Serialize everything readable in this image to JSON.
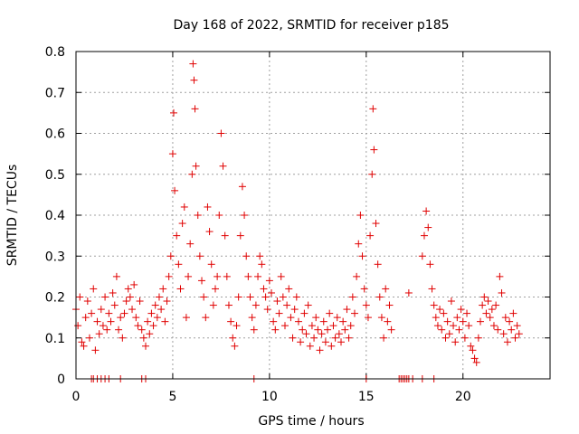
{
  "chart_data": {
    "type": "scatter",
    "title": "Day 168 of 2022, SRMTID for receiver p185",
    "xlabel": "GPS time / hours",
    "ylabel": "SRMTID / TECUs",
    "xlim": [
      0,
      24.5
    ],
    "ylim": [
      0,
      0.8
    ],
    "x_ticks": [
      0,
      5,
      10,
      15,
      20
    ],
    "x_tick_labels": [
      "0",
      "5",
      "10",
      "15",
      "20"
    ],
    "y_ticks": [
      0,
      0.1,
      0.2,
      0.3,
      0.4,
      0.5,
      0.6,
      0.7,
      0.8
    ],
    "y_tick_labels": [
      "0",
      "0.1",
      "0.2",
      "0.3",
      "0.4",
      "0.5",
      "0.6",
      "0.7",
      "0.8"
    ],
    "grid": true,
    "marker": "+",
    "color": "#e00000",
    "series": [
      {
        "name": "SRMTID",
        "points": [
          [
            0.0,
            0.17
          ],
          [
            0.1,
            0.13
          ],
          [
            0.2,
            0.2
          ],
          [
            0.3,
            0.09
          ],
          [
            0.4,
            0.08
          ],
          [
            0.5,
            0.15
          ],
          [
            0.6,
            0.19
          ],
          [
            0.7,
            0.1
          ],
          [
            0.8,
            0.16
          ],
          [
            0.9,
            0.22
          ],
          [
            1.0,
            0.07
          ],
          [
            1.1,
            0.14
          ],
          [
            1.2,
            0.11
          ],
          [
            1.3,
            0.17
          ],
          [
            1.4,
            0.13
          ],
          [
            1.5,
            0.2
          ],
          [
            1.6,
            0.12
          ],
          [
            1.7,
            0.16
          ],
          [
            1.8,
            0.14
          ],
          [
            1.9,
            0.21
          ],
          [
            2.0,
            0.18
          ],
          [
            2.1,
            0.25
          ],
          [
            2.2,
            0.12
          ],
          [
            2.3,
            0.15
          ],
          [
            2.4,
            0.1
          ],
          [
            2.5,
            0.16
          ],
          [
            2.6,
            0.19
          ],
          [
            2.7,
            0.22
          ],
          [
            2.8,
            0.2
          ],
          [
            2.9,
            0.17
          ],
          [
            3.0,
            0.23
          ],
          [
            3.1,
            0.15
          ],
          [
            3.2,
            0.13
          ],
          [
            3.3,
            0.19
          ],
          [
            3.4,
            0.12
          ],
          [
            3.5,
            0.1
          ],
          [
            3.6,
            0.08
          ],
          [
            3.7,
            0.14
          ],
          [
            3.8,
            0.11
          ],
          [
            3.9,
            0.16
          ],
          [
            4.0,
            0.13
          ],
          [
            4.1,
            0.18
          ],
          [
            4.2,
            0.15
          ],
          [
            4.3,
            0.2
          ],
          [
            4.4,
            0.17
          ],
          [
            4.5,
            0.22
          ],
          [
            4.6,
            0.14
          ],
          [
            4.7,
            0.19
          ],
          [
            4.8,
            0.25
          ],
          [
            4.9,
            0.3
          ],
          [
            5.0,
            0.55
          ],
          [
            5.05,
            0.65
          ],
          [
            5.1,
            0.46
          ],
          [
            5.2,
            0.35
          ],
          [
            5.3,
            0.28
          ],
          [
            5.4,
            0.22
          ],
          [
            5.5,
            0.38
          ],
          [
            5.6,
            0.42
          ],
          [
            5.7,
            0.15
          ],
          [
            5.8,
            0.25
          ],
          [
            5.9,
            0.33
          ],
          [
            6.0,
            0.5
          ],
          [
            6.05,
            0.77
          ],
          [
            6.1,
            0.73
          ],
          [
            6.15,
            0.66
          ],
          [
            6.2,
            0.52
          ],
          [
            6.3,
            0.4
          ],
          [
            6.4,
            0.3
          ],
          [
            6.5,
            0.24
          ],
          [
            6.6,
            0.2
          ],
          [
            6.7,
            0.15
          ],
          [
            6.8,
            0.42
          ],
          [
            6.9,
            0.36
          ],
          [
            7.0,
            0.28
          ],
          [
            7.1,
            0.18
          ],
          [
            7.2,
            0.22
          ],
          [
            7.3,
            0.25
          ],
          [
            7.4,
            0.4
          ],
          [
            7.5,
            0.6
          ],
          [
            7.6,
            0.52
          ],
          [
            7.7,
            0.35
          ],
          [
            7.8,
            0.25
          ],
          [
            7.9,
            0.18
          ],
          [
            8.0,
            0.14
          ],
          [
            8.1,
            0.1
          ],
          [
            8.2,
            0.08
          ],
          [
            8.3,
            0.13
          ],
          [
            8.4,
            0.2
          ],
          [
            8.5,
            0.35
          ],
          [
            8.6,
            0.47
          ],
          [
            8.7,
            0.4
          ],
          [
            8.8,
            0.3
          ],
          [
            8.9,
            0.25
          ],
          [
            9.0,
            0.2
          ],
          [
            9.1,
            0.15
          ],
          [
            9.2,
            0.12
          ],
          [
            9.3,
            0.18
          ],
          [
            9.4,
            0.25
          ],
          [
            9.5,
            0.3
          ],
          [
            9.6,
            0.28
          ],
          [
            9.7,
            0.22
          ],
          [
            9.8,
            0.2
          ],
          [
            9.9,
            0.17
          ],
          [
            10.0,
            0.24
          ],
          [
            10.1,
            0.21
          ],
          [
            10.2,
            0.14
          ],
          [
            10.3,
            0.12
          ],
          [
            10.4,
            0.19
          ],
          [
            10.5,
            0.16
          ],
          [
            10.6,
            0.25
          ],
          [
            10.7,
            0.2
          ],
          [
            10.8,
            0.13
          ],
          [
            10.9,
            0.18
          ],
          [
            11.0,
            0.22
          ],
          [
            11.1,
            0.15
          ],
          [
            11.2,
            0.1
          ],
          [
            11.3,
            0.17
          ],
          [
            11.4,
            0.2
          ],
          [
            11.5,
            0.14
          ],
          [
            11.6,
            0.09
          ],
          [
            11.7,
            0.12
          ],
          [
            11.8,
            0.16
          ],
          [
            11.9,
            0.11
          ],
          [
            12.0,
            0.18
          ],
          [
            12.1,
            0.08
          ],
          [
            12.2,
            0.13
          ],
          [
            12.3,
            0.1
          ],
          [
            12.4,
            0.15
          ],
          [
            12.5,
            0.12
          ],
          [
            12.6,
            0.07
          ],
          [
            12.7,
            0.11
          ],
          [
            12.8,
            0.14
          ],
          [
            12.9,
            0.09
          ],
          [
            13.0,
            0.12
          ],
          [
            13.1,
            0.16
          ],
          [
            13.2,
            0.08
          ],
          [
            13.3,
            0.13
          ],
          [
            13.4,
            0.1
          ],
          [
            13.5,
            0.15
          ],
          [
            13.6,
            0.11
          ],
          [
            13.7,
            0.09
          ],
          [
            13.8,
            0.14
          ],
          [
            13.9,
            0.12
          ],
          [
            14.0,
            0.17
          ],
          [
            14.1,
            0.1
          ],
          [
            14.2,
            0.13
          ],
          [
            14.3,
            0.2
          ],
          [
            14.4,
            0.16
          ],
          [
            14.5,
            0.25
          ],
          [
            14.6,
            0.33
          ],
          [
            14.7,
            0.4
          ],
          [
            14.8,
            0.3
          ],
          [
            14.9,
            0.22
          ],
          [
            15.0,
            0.18
          ],
          [
            15.1,
            0.15
          ],
          [
            15.2,
            0.35
          ],
          [
            15.3,
            0.5
          ],
          [
            15.35,
            0.66
          ],
          [
            15.4,
            0.56
          ],
          [
            15.5,
            0.38
          ],
          [
            15.6,
            0.28
          ],
          [
            15.7,
            0.2
          ],
          [
            15.8,
            0.15
          ],
          [
            15.9,
            0.1
          ],
          [
            16.0,
            0.22
          ],
          [
            16.1,
            0.14
          ],
          [
            16.2,
            0.18
          ],
          [
            16.3,
            0.12
          ],
          [
            17.2,
            0.21
          ],
          [
            17.9,
            0.3
          ],
          [
            18.0,
            0.35
          ],
          [
            18.1,
            0.41
          ],
          [
            18.2,
            0.37
          ],
          [
            18.3,
            0.28
          ],
          [
            18.4,
            0.22
          ],
          [
            18.5,
            0.18
          ],
          [
            18.6,
            0.15
          ],
          [
            18.7,
            0.13
          ],
          [
            18.8,
            0.17
          ],
          [
            18.9,
            0.12
          ],
          [
            19.0,
            0.16
          ],
          [
            19.1,
            0.1
          ],
          [
            19.2,
            0.14
          ],
          [
            19.3,
            0.11
          ],
          [
            19.4,
            0.19
          ],
          [
            19.5,
            0.13
          ],
          [
            19.6,
            0.09
          ],
          [
            19.7,
            0.15
          ],
          [
            19.8,
            0.12
          ],
          [
            19.9,
            0.17
          ],
          [
            20.0,
            0.14
          ],
          [
            20.1,
            0.1
          ],
          [
            20.2,
            0.16
          ],
          [
            20.3,
            0.13
          ],
          [
            20.4,
            0.08
          ],
          [
            20.5,
            0.07
          ],
          [
            20.6,
            0.05
          ],
          [
            20.7,
            0.04
          ],
          [
            20.8,
            0.1
          ],
          [
            20.9,
            0.14
          ],
          [
            21.0,
            0.18
          ],
          [
            21.1,
            0.2
          ],
          [
            21.2,
            0.16
          ],
          [
            21.3,
            0.19
          ],
          [
            21.4,
            0.15
          ],
          [
            21.5,
            0.17
          ],
          [
            21.6,
            0.13
          ],
          [
            21.7,
            0.18
          ],
          [
            21.8,
            0.12
          ],
          [
            21.9,
            0.25
          ],
          [
            22.0,
            0.21
          ],
          [
            22.1,
            0.11
          ],
          [
            22.2,
            0.15
          ],
          [
            22.3,
            0.09
          ],
          [
            22.4,
            0.14
          ],
          [
            22.5,
            0.12
          ],
          [
            22.6,
            0.16
          ],
          [
            22.7,
            0.1
          ],
          [
            22.8,
            0.13
          ],
          [
            22.9,
            0.11
          ]
        ],
        "zero_points_x": [
          0.8,
          0.9,
          1.1,
          1.3,
          1.5,
          1.7,
          2.3,
          3.4,
          3.6,
          9.2,
          15.0,
          16.7,
          16.8,
          16.9,
          17.0,
          17.1,
          17.2,
          17.4,
          17.9,
          18.5
        ]
      }
    ]
  }
}
